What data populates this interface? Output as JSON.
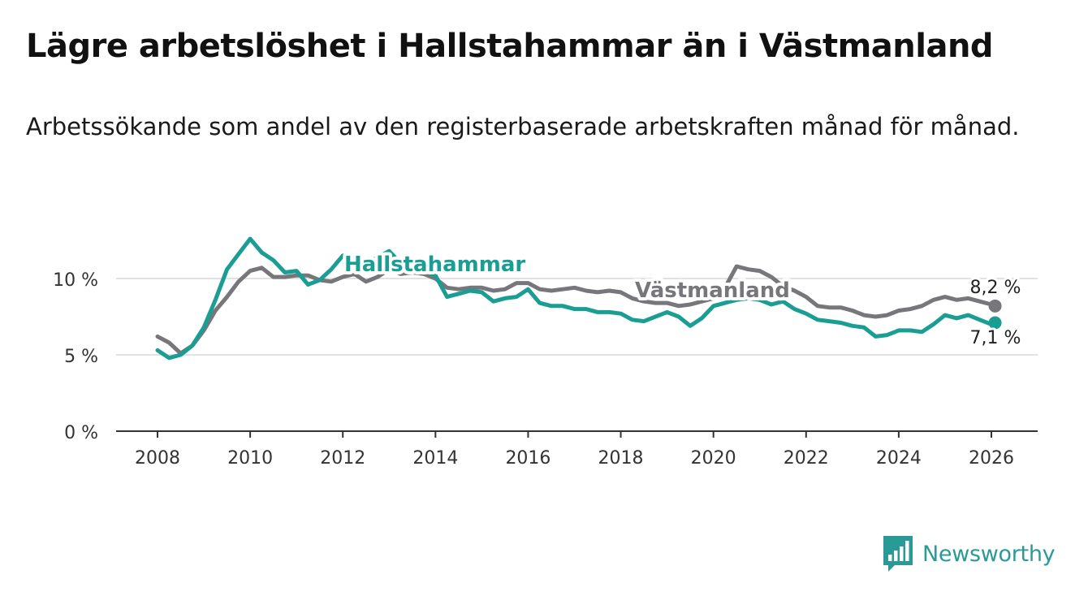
{
  "header": {
    "title": "Lägre arbetslöshet i Hallstahammar än i Västmanland",
    "subtitle": "Arbetssökande som andel av den registerbaserade arbetskraften månad för månad."
  },
  "brand": {
    "name": "Newsworthy",
    "color": "#2a9a97"
  },
  "chart_data": {
    "type": "line",
    "title": "Lägre arbetslöshet i Hallstahammar än i Västmanland",
    "subtitle": "Arbetssökande som andel av den registerbaserade arbetskraften månad för månad.",
    "xlabel": "",
    "ylabel": "",
    "xlim": [
      2007.4,
      2027.0
    ],
    "ylim": [
      0,
      12.5
    ],
    "x_ticks": [
      {
        "value": 2008,
        "label": "2008"
      },
      {
        "value": 2010,
        "label": "2010"
      },
      {
        "value": 2012,
        "label": "2012"
      },
      {
        "value": 2014,
        "label": "2014"
      },
      {
        "value": 2016,
        "label": "2016"
      },
      {
        "value": 2018,
        "label": "2018"
      },
      {
        "value": 2020,
        "label": "2020"
      },
      {
        "value": 2022,
        "label": "2022"
      },
      {
        "value": 2024,
        "label": "2024"
      },
      {
        "value": 2026,
        "label": "2026"
      }
    ],
    "y_ticks": [
      {
        "value": 0,
        "label": "0 %"
      },
      {
        "value": 5,
        "label": "5 %"
      },
      {
        "value": 10,
        "label": "10 %"
      }
    ],
    "grid": true,
    "series": [
      {
        "name": "Västmanland",
        "label": "Västmanland",
        "color": "#77767b",
        "end_label": "8,2 %",
        "x": [
          2008.0,
          2008.25,
          2008.5,
          2008.75,
          2009.0,
          2009.25,
          2009.5,
          2009.75,
          2010.0,
          2010.25,
          2010.5,
          2010.75,
          2011.0,
          2011.25,
          2011.5,
          2011.75,
          2012.0,
          2012.25,
          2012.5,
          2012.75,
          2013.0,
          2013.25,
          2013.5,
          2013.75,
          2014.0,
          2014.25,
          2014.5,
          2014.75,
          2015.0,
          2015.25,
          2015.5,
          2015.75,
          2016.0,
          2016.25,
          2016.5,
          2016.75,
          2017.0,
          2017.25,
          2017.5,
          2017.75,
          2018.0,
          2018.25,
          2018.5,
          2018.75,
          2019.0,
          2019.25,
          2019.5,
          2019.75,
          2020.0,
          2020.25,
          2020.5,
          2020.75,
          2021.0,
          2021.25,
          2021.5,
          2021.75,
          2022.0,
          2022.25,
          2022.5,
          2022.75,
          2023.0,
          2023.25,
          2023.5,
          2023.75,
          2024.0,
          2024.25,
          2024.5,
          2024.75,
          2025.0,
          2025.25,
          2025.5,
          2025.75,
          2026.0,
          2026.08
        ],
        "values": [
          6.2,
          5.8,
          5.1,
          5.6,
          6.6,
          7.9,
          8.8,
          9.8,
          10.5,
          10.7,
          10.1,
          10.1,
          10.2,
          10.2,
          9.9,
          9.8,
          10.1,
          10.3,
          9.8,
          10.1,
          10.6,
          10.3,
          10.4,
          10.3,
          10.0,
          9.4,
          9.3,
          9.4,
          9.4,
          9.2,
          9.3,
          9.7,
          9.7,
          9.3,
          9.2,
          9.3,
          9.4,
          9.2,
          9.1,
          9.2,
          9.1,
          8.7,
          8.5,
          8.4,
          8.4,
          8.2,
          8.3,
          8.5,
          8.7,
          9.4,
          10.8,
          10.6,
          10.5,
          10.1,
          9.5,
          9.2,
          8.8,
          8.2,
          8.1,
          8.1,
          7.9,
          7.6,
          7.5,
          7.6,
          7.9,
          8.0,
          8.2,
          8.6,
          8.8,
          8.6,
          8.7,
          8.5,
          8.3,
          8.2
        ]
      },
      {
        "name": "Hallstahammar",
        "label": "Hallstahammar",
        "color": "#1a9e93",
        "end_label": "7,1 %",
        "x": [
          2008.0,
          2008.25,
          2008.5,
          2008.75,
          2009.0,
          2009.25,
          2009.5,
          2009.75,
          2010.0,
          2010.25,
          2010.5,
          2010.75,
          2011.0,
          2011.25,
          2011.5,
          2011.75,
          2012.0,
          2012.25,
          2012.5,
          2012.75,
          2013.0,
          2013.25,
          2013.5,
          2013.75,
          2014.0,
          2014.25,
          2014.5,
          2014.75,
          2015.0,
          2015.25,
          2015.5,
          2015.75,
          2016.0,
          2016.25,
          2016.5,
          2016.75,
          2017.0,
          2017.25,
          2017.5,
          2017.75,
          2018.0,
          2018.25,
          2018.5,
          2018.75,
          2019.0,
          2019.25,
          2019.5,
          2019.75,
          2020.0,
          2020.25,
          2020.5,
          2020.75,
          2021.0,
          2021.25,
          2021.5,
          2021.75,
          2022.0,
          2022.25,
          2022.5,
          2022.75,
          2023.0,
          2023.25,
          2023.5,
          2023.75,
          2024.0,
          2024.25,
          2024.5,
          2024.75,
          2025.0,
          2025.25,
          2025.5,
          2025.75,
          2026.0,
          2026.08
        ],
        "values": [
          5.3,
          4.8,
          5.0,
          5.6,
          6.8,
          8.6,
          10.6,
          11.6,
          12.6,
          11.7,
          11.2,
          10.4,
          10.5,
          9.6,
          9.9,
          10.6,
          11.5,
          11.3,
          10.9,
          11.4,
          11.8,
          11.0,
          10.6,
          10.5,
          10.2,
          8.8,
          9.0,
          9.2,
          9.1,
          8.5,
          8.7,
          8.8,
          9.3,
          8.4,
          8.2,
          8.2,
          8.0,
          8.0,
          7.8,
          7.8,
          7.7,
          7.3,
          7.2,
          7.5,
          7.8,
          7.5,
          6.9,
          7.4,
          8.2,
          8.4,
          8.6,
          8.7,
          8.6,
          8.3,
          8.5,
          8.0,
          7.7,
          7.3,
          7.2,
          7.1,
          6.9,
          6.8,
          6.2,
          6.3,
          6.6,
          6.6,
          6.5,
          7.0,
          7.6,
          7.4,
          7.6,
          7.3,
          7.0,
          7.1
        ]
      }
    ]
  }
}
